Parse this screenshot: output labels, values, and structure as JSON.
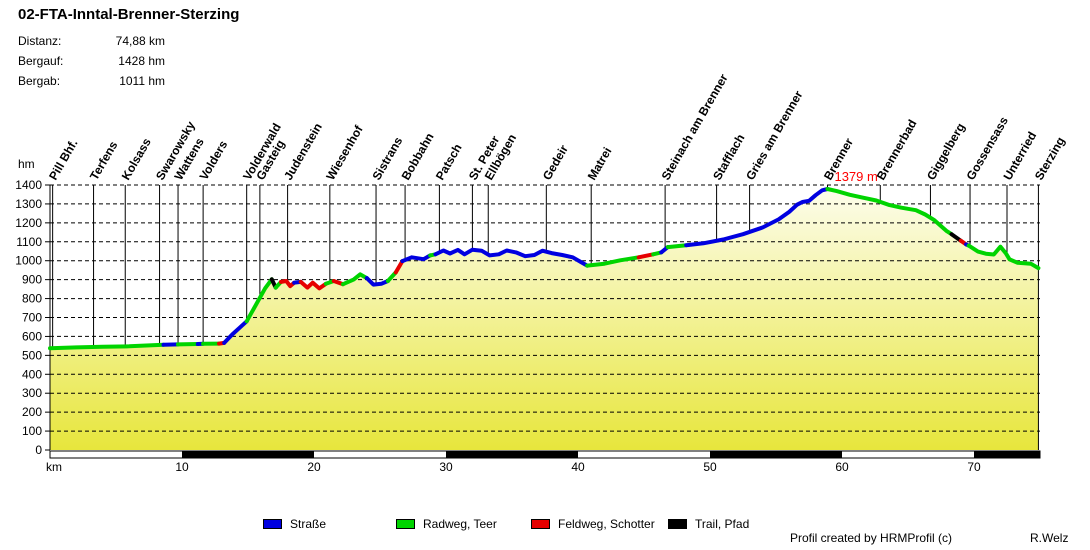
{
  "header": {
    "title": "02-FTA-Inntal-Brenner-Sterzing",
    "stats": [
      {
        "label": "Distanz:",
        "value": "74,88 km"
      },
      {
        "label": "Bergauf:",
        "value": "1428 hm"
      },
      {
        "label": "Bergab:",
        "value": "1011 hm"
      }
    ]
  },
  "footer": {
    "credit": "Profil created by HRMProfil (c)",
    "author": "R.Welz"
  },
  "chart_data": {
    "type": "area",
    "title": "02-FTA-Inntal-Brenner-Sterzing",
    "xlabel": "km",
    "ylabel": "hm",
    "xlim": [
      0,
      75
    ],
    "ylim": [
      0,
      1400
    ],
    "x_ticks": [
      10,
      20,
      30,
      40,
      50,
      60,
      70
    ],
    "y_ticks": [
      0,
      100,
      200,
      300,
      400,
      500,
      600,
      700,
      800,
      900,
      1000,
      1100,
      1200,
      1300,
      1400
    ],
    "grid": "dashed-horizontal",
    "max_elevation_label": "1379 m",
    "max_elevation_km": 58.9,
    "max_label_color": "#FF0000",
    "area_fill": {
      "top": "#FDFDEE",
      "bottom": "#E7E63C"
    },
    "surface_colors": {
      "strasse": "#0000E0",
      "radweg": "#00D400",
      "feldweg": "#E60000",
      "trail": "#000000"
    },
    "legend": [
      {
        "key": "strasse",
        "label": "Straße"
      },
      {
        "key": "radweg",
        "label": "Radweg, Teer"
      },
      {
        "key": "feldweg",
        "label": "Feldweg, Schotter"
      },
      {
        "key": "trail",
        "label": "Trail, Pfad"
      }
    ],
    "legend_position": "bottom",
    "waypoints": [
      {
        "name": "Pill Bhf.",
        "km": 0.2
      },
      {
        "name": "Terfens",
        "km": 3.3
      },
      {
        "name": "Kolsass",
        "km": 5.7
      },
      {
        "name": "Swarowsky",
        "km": 8.3
      },
      {
        "name": "Wattens",
        "km": 9.7
      },
      {
        "name": "Volders",
        "km": 11.6
      },
      {
        "name": "Volderwald",
        "km": 14.9
      },
      {
        "name": "Gasteig",
        "km": 15.9
      },
      {
        "name": "Judenstein",
        "km": 18.0
      },
      {
        "name": "Wiesenhof",
        "km": 21.2
      },
      {
        "name": "Sistrans",
        "km": 24.7
      },
      {
        "name": "Bobbahn",
        "km": 26.9
      },
      {
        "name": "Patsch",
        "km": 29.5
      },
      {
        "name": "St. Peter",
        "km": 32.0
      },
      {
        "name": "Ellbögen",
        "km": 33.2
      },
      {
        "name": "Gedeir",
        "km": 37.6
      },
      {
        "name": "Matrei",
        "km": 41.0
      },
      {
        "name": "Steinach am Brenner",
        "km": 46.6
      },
      {
        "name": "Stafflach",
        "km": 50.5
      },
      {
        "name": "Gries am Brenner",
        "km": 53.0
      },
      {
        "name": "Brenner",
        "km": 58.9
      },
      {
        "name": "Brennerbad",
        "km": 62.9
      },
      {
        "name": "Giggelberg",
        "km": 66.7
      },
      {
        "name": "Gossensass",
        "km": 69.7
      },
      {
        "name": "Unterried",
        "km": 72.5
      },
      {
        "name": "Sterzing",
        "km": 74.88
      }
    ],
    "segments": [
      {
        "surface": "radweg",
        "points": [
          [
            0,
            538
          ],
          [
            2,
            542
          ],
          [
            4,
            545
          ],
          [
            6,
            548
          ],
          [
            8.6,
            556
          ]
        ]
      },
      {
        "surface": "strasse",
        "points": [
          [
            8.6,
            556
          ],
          [
            9.7,
            558
          ]
        ]
      },
      {
        "surface": "radweg",
        "points": [
          [
            9.7,
            558
          ],
          [
            11.2,
            560
          ]
        ]
      },
      {
        "surface": "strasse",
        "points": [
          [
            11.2,
            560
          ],
          [
            11.6,
            561
          ]
        ]
      },
      {
        "surface": "radweg",
        "points": [
          [
            11.6,
            561
          ],
          [
            12.8,
            562
          ]
        ]
      },
      {
        "surface": "feldweg",
        "points": [
          [
            12.8,
            562
          ],
          [
            13.2,
            566
          ]
        ]
      },
      {
        "surface": "strasse",
        "points": [
          [
            13.2,
            566
          ],
          [
            13.8,
            610
          ],
          [
            14.4,
            648
          ],
          [
            14.9,
            680
          ]
        ]
      },
      {
        "surface": "radweg",
        "points": [
          [
            14.9,
            680
          ],
          [
            16.3,
            855
          ],
          [
            16.8,
            902
          ]
        ]
      },
      {
        "surface": "trail",
        "points": [
          [
            16.8,
            902
          ],
          [
            17.1,
            858
          ]
        ]
      },
      {
        "surface": "radweg",
        "points": [
          [
            17.1,
            858
          ],
          [
            17.5,
            888
          ]
        ]
      },
      {
        "surface": "feldweg",
        "points": [
          [
            17.5,
            888
          ],
          [
            17.9,
            893
          ],
          [
            18.2,
            866
          ],
          [
            18.5,
            884
          ]
        ]
      },
      {
        "surface": "strasse",
        "points": [
          [
            18.5,
            884
          ],
          [
            19.0,
            888
          ]
        ]
      },
      {
        "surface": "feldweg",
        "points": [
          [
            19.0,
            888
          ],
          [
            19.5,
            858
          ],
          [
            19.9,
            884
          ],
          [
            20.4,
            854
          ],
          [
            20.9,
            878
          ]
        ]
      },
      {
        "surface": "radweg",
        "points": [
          [
            20.9,
            878
          ],
          [
            21.5,
            893
          ]
        ]
      },
      {
        "surface": "feldweg",
        "points": [
          [
            21.5,
            893
          ],
          [
            22.2,
            876
          ]
        ]
      },
      {
        "surface": "radweg",
        "points": [
          [
            22.2,
            876
          ],
          [
            23.0,
            900
          ],
          [
            23.5,
            928
          ],
          [
            24.0,
            908
          ]
        ]
      },
      {
        "surface": "strasse",
        "points": [
          [
            24.0,
            908
          ],
          [
            24.5,
            874
          ],
          [
            25.1,
            878
          ],
          [
            25.6,
            893
          ]
        ]
      },
      {
        "surface": "radweg",
        "points": [
          [
            25.6,
            893
          ],
          [
            26.2,
            938
          ]
        ]
      },
      {
        "surface": "feldweg",
        "points": [
          [
            26.2,
            938
          ],
          [
            26.7,
            998
          ]
        ]
      },
      {
        "surface": "strasse",
        "points": [
          [
            26.7,
            998
          ],
          [
            27.4,
            1018
          ],
          [
            28.3,
            1008
          ],
          [
            28.8,
            1028
          ]
        ]
      },
      {
        "surface": "radweg",
        "points": [
          [
            28.8,
            1028
          ],
          [
            29.2,
            1034
          ]
        ]
      },
      {
        "surface": "strasse",
        "points": [
          [
            29.2,
            1034
          ],
          [
            29.8,
            1054
          ],
          [
            30.3,
            1038
          ],
          [
            30.9,
            1057
          ],
          [
            31.4,
            1034
          ],
          [
            32.0,
            1058
          ],
          [
            32.7,
            1053
          ],
          [
            33.3,
            1028
          ],
          [
            34.0,
            1034
          ],
          [
            34.6,
            1054
          ],
          [
            35.3,
            1044
          ],
          [
            36.0,
            1024
          ],
          [
            36.7,
            1030
          ],
          [
            37.3,
            1053
          ],
          [
            38.0,
            1040
          ],
          [
            38.8,
            1030
          ],
          [
            39.6,
            1018
          ],
          [
            40.2,
            994
          ],
          [
            40.7,
            974
          ]
        ]
      },
      {
        "surface": "radweg",
        "points": [
          [
            40.7,
            974
          ],
          [
            42.0,
            984
          ],
          [
            43.2,
            1002
          ],
          [
            44.6,
            1018
          ]
        ]
      },
      {
        "surface": "feldweg",
        "points": [
          [
            44.6,
            1018
          ],
          [
            45.7,
            1034
          ]
        ]
      },
      {
        "surface": "radweg",
        "points": [
          [
            45.7,
            1034
          ],
          [
            46.3,
            1044
          ]
        ]
      },
      {
        "surface": "strasse",
        "points": [
          [
            46.3,
            1044
          ],
          [
            46.8,
            1072
          ]
        ]
      },
      {
        "surface": "radweg",
        "points": [
          [
            46.8,
            1072
          ],
          [
            48.2,
            1082
          ]
        ]
      },
      {
        "surface": "strasse",
        "points": [
          [
            48.2,
            1082
          ],
          [
            49.5,
            1092
          ],
          [
            51.0,
            1112
          ],
          [
            52.5,
            1140
          ],
          [
            54.0,
            1176
          ],
          [
            55.2,
            1218
          ],
          [
            56.0,
            1258
          ],
          [
            56.6,
            1296
          ],
          [
            57.0,
            1310
          ],
          [
            57.5,
            1316
          ],
          [
            58.0,
            1346
          ],
          [
            58.5,
            1372
          ],
          [
            58.9,
            1379
          ]
        ]
      },
      {
        "surface": "radweg",
        "points": [
          [
            58.9,
            1379
          ],
          [
            59.6,
            1368
          ],
          [
            60.6,
            1348
          ],
          [
            61.6,
            1333
          ],
          [
            62.6,
            1318
          ],
          [
            63.6,
            1294
          ],
          [
            64.5,
            1280
          ],
          [
            65.6,
            1267
          ],
          [
            66.3,
            1244
          ],
          [
            67.0,
            1214
          ],
          [
            67.9,
            1158
          ],
          [
            68.3,
            1140
          ]
        ]
      },
      {
        "surface": "trail",
        "points": [
          [
            68.3,
            1140
          ],
          [
            69.0,
            1106
          ]
        ]
      },
      {
        "surface": "feldweg",
        "points": [
          [
            69.0,
            1106
          ],
          [
            69.4,
            1086
          ]
        ]
      },
      {
        "surface": "strasse",
        "points": [
          [
            69.4,
            1086
          ],
          [
            69.6,
            1080
          ]
        ]
      },
      {
        "surface": "radweg",
        "points": [
          [
            69.6,
            1080
          ],
          [
            70.3,
            1048
          ],
          [
            70.9,
            1037
          ],
          [
            71.5,
            1033
          ],
          [
            72.0,
            1074
          ],
          [
            72.4,
            1040
          ],
          [
            72.7,
            1007
          ],
          [
            73.3,
            989
          ],
          [
            74.3,
            984
          ],
          [
            74.88,
            961
          ]
        ]
      }
    ]
  }
}
